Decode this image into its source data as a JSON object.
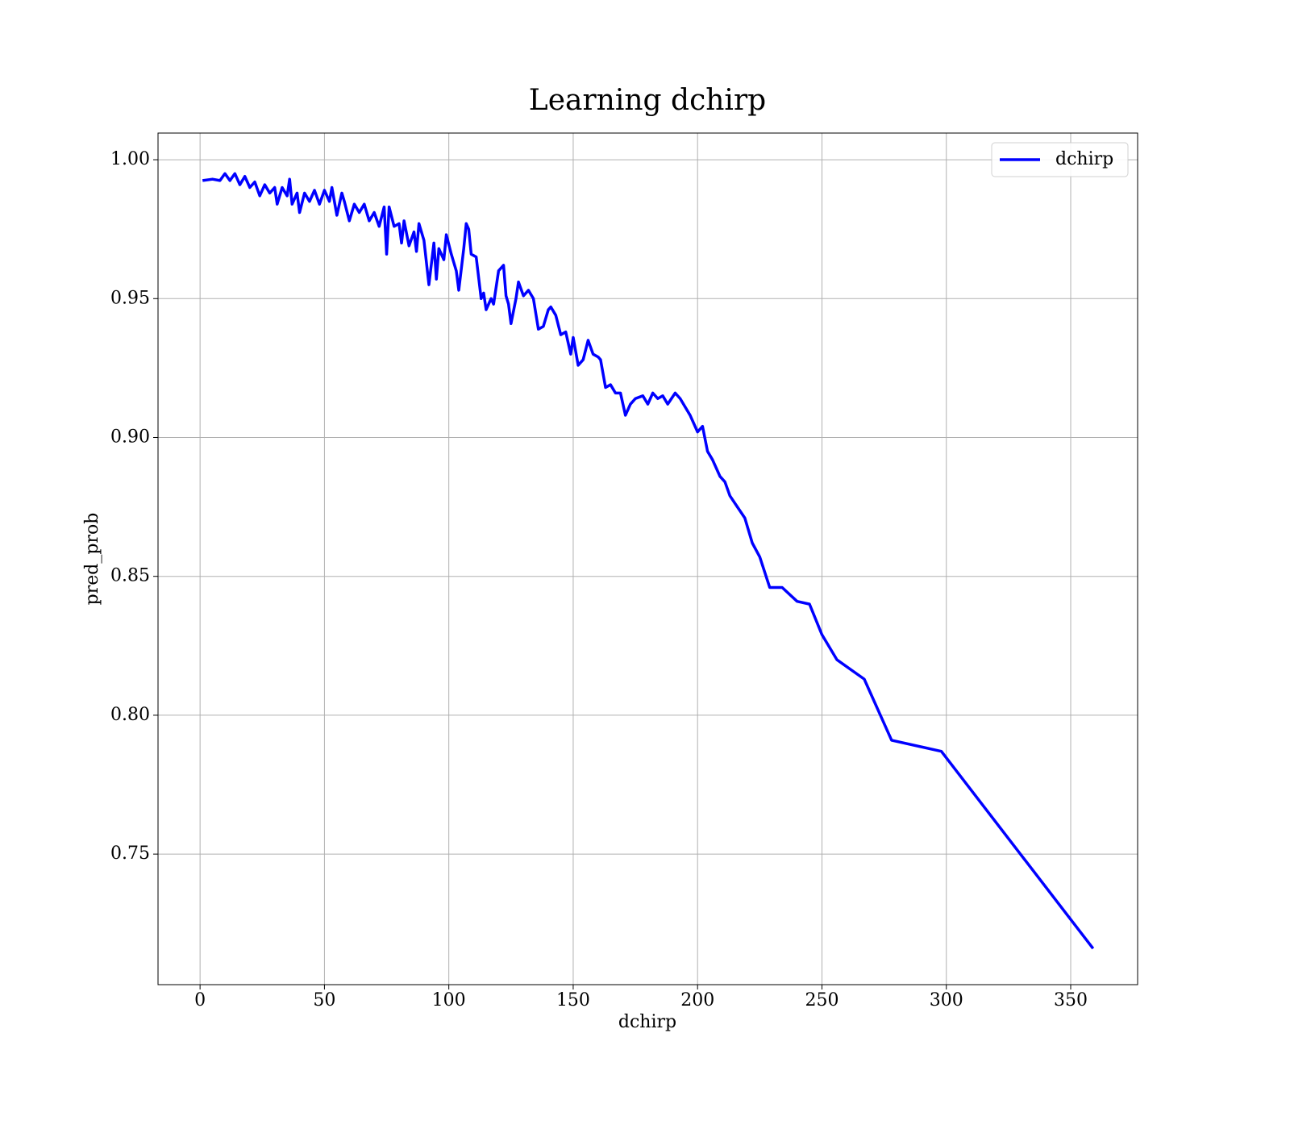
{
  "chart_data": {
    "type": "line",
    "title": "Learning dchirp",
    "xlabel": "dchirp",
    "ylabel": "pred_prob",
    "x": [
      1,
      5,
      8,
      10,
      12,
      14,
      16,
      18,
      20,
      22,
      24,
      26,
      28,
      30,
      31,
      33,
      35,
      36,
      37,
      39,
      40,
      42,
      44,
      46,
      48,
      50,
      52,
      53,
      55,
      57,
      58,
      60,
      62,
      64,
      66,
      68,
      70,
      72,
      74,
      75,
      76,
      78,
      80,
      81,
      82,
      84,
      86,
      87,
      88,
      90,
      92,
      94,
      95,
      96,
      98,
      99,
      101,
      103,
      104,
      106,
      107,
      108,
      109,
      111,
      113,
      114,
      115,
      117,
      118,
      120,
      122,
      123,
      124,
      125,
      127,
      128,
      130,
      132,
      134,
      136,
      138,
      140,
      141,
      143,
      145,
      147,
      149,
      150,
      152,
      154,
      156,
      158,
      160,
      161,
      163,
      165,
      167,
      169,
      171,
      173,
      175,
      178,
      180,
      182,
      184,
      186,
      188,
      191,
      193,
      197,
      200,
      202,
      204,
      206,
      209,
      211,
      213,
      216,
      219,
      222,
      225,
      229,
      234,
      240,
      245,
      250,
      256,
      267,
      278,
      298,
      359
    ],
    "series": [
      {
        "name": "dchirp",
        "color": "#0000ff",
        "values": [
          0.9925,
          0.993,
          0.9925,
          0.995,
          0.9925,
          0.995,
          0.991,
          0.994,
          0.99,
          0.992,
          0.987,
          0.991,
          0.988,
          0.99,
          0.984,
          0.99,
          0.987,
          0.993,
          0.984,
          0.988,
          0.981,
          0.988,
          0.985,
          0.989,
          0.984,
          0.989,
          0.985,
          0.99,
          0.98,
          0.988,
          0.985,
          0.978,
          0.984,
          0.981,
          0.984,
          0.978,
          0.981,
          0.976,
          0.983,
          0.966,
          0.983,
          0.976,
          0.977,
          0.97,
          0.978,
          0.969,
          0.974,
          0.967,
          0.977,
          0.971,
          0.955,
          0.97,
          0.957,
          0.968,
          0.964,
          0.973,
          0.966,
          0.96,
          0.953,
          0.968,
          0.977,
          0.975,
          0.966,
          0.965,
          0.95,
          0.952,
          0.946,
          0.95,
          0.948,
          0.96,
          0.962,
          0.951,
          0.948,
          0.941,
          0.95,
          0.956,
          0.951,
          0.953,
          0.95,
          0.939,
          0.94,
          0.946,
          0.947,
          0.944,
          0.937,
          0.938,
          0.93,
          0.936,
          0.926,
          0.928,
          0.935,
          0.93,
          0.929,
          0.928,
          0.918,
          0.919,
          0.916,
          0.916,
          0.908,
          0.912,
          0.914,
          0.915,
          0.912,
          0.916,
          0.914,
          0.915,
          0.912,
          0.916,
          0.914,
          0.908,
          0.902,
          0.904,
          0.895,
          0.892,
          0.886,
          0.884,
          0.879,
          0.875,
          0.871,
          0.862,
          0.857,
          0.846,
          0.846,
          0.841,
          0.84,
          0.829,
          0.82,
          0.813,
          0.791,
          0.787,
          0.716
        ]
      }
    ],
    "xlim": [
      -16.9,
      376.9
    ],
    "xticks": [
      0,
      50,
      100,
      150,
      200,
      250,
      300,
      350
    ],
    "ylim": [
      0.703,
      1.0096
    ],
    "yticks": [
      0.75,
      {
        "value": 0.8,
        "label": "0.80"
      },
      0.85,
      {
        "value": 0.9,
        "label": "0.90"
      },
      0.95,
      {
        "value": 1,
        "label": "1.00"
      }
    ],
    "grid": true,
    "legend": "upper right"
  }
}
